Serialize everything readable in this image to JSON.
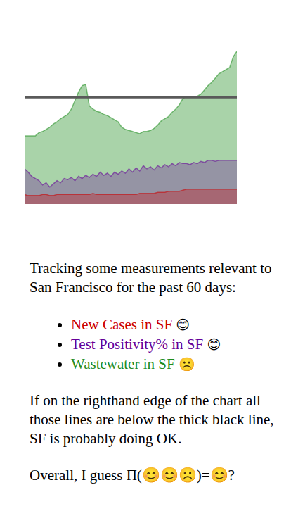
{
  "chart_data": {
    "type": "area",
    "x": [
      1,
      2,
      3,
      4,
      5,
      6,
      7,
      8,
      9,
      10,
      11,
      12,
      13,
      14,
      15,
      16,
      17,
      18,
      19,
      20,
      21,
      22,
      23,
      24,
      25,
      26,
      27,
      28,
      29,
      30,
      31,
      32,
      33,
      34,
      35,
      36,
      37,
      38,
      39,
      40,
      41,
      42,
      43,
      44,
      45,
      46,
      47,
      48,
      49,
      50,
      51,
      52,
      53,
      54,
      55,
      56,
      57,
      58,
      59,
      60
    ],
    "xlim": [
      1,
      60
    ],
    "ylim": [
      0,
      1.45
    ],
    "tick_labels": false,
    "grid": false,
    "reference_line": 1,
    "series": [
      {
        "name": "New Cases in SF",
        "mood": "😊",
        "color": "#cc0000",
        "values": [
          0.09,
          0.08,
          0.08,
          0.08,
          0.08,
          0.09,
          0.09,
          0.08,
          0.08,
          0.09,
          0.09,
          0.09,
          0.09,
          0.09,
          0.09,
          0.09,
          0.09,
          0.09,
          0.09,
          0.1,
          0.09,
          0.09,
          0.09,
          0.09,
          0.09,
          0.09,
          0.09,
          0.09,
          0.09,
          0.09,
          0.09,
          0.09,
          0.1,
          0.1,
          0.1,
          0.1,
          0.1,
          0.11,
          0.11,
          0.11,
          0.12,
          0.12,
          0.12,
          0.12,
          0.13,
          0.14,
          0.14,
          0.14,
          0.14,
          0.14,
          0.14,
          0.14,
          0.14,
          0.14,
          0.14,
          0.14,
          0.14,
          0.14,
          0.14,
          0.14
        ]
      },
      {
        "name": "Test Positivity% in SF",
        "mood": "😊",
        "color": "#660099",
        "values": [
          0.33,
          0.3,
          0.26,
          0.24,
          0.22,
          0.18,
          0.2,
          0.16,
          0.19,
          0.22,
          0.2,
          0.24,
          0.23,
          0.25,
          0.22,
          0.26,
          0.24,
          0.27,
          0.25,
          0.28,
          0.26,
          0.3,
          0.27,
          0.29,
          0.26,
          0.3,
          0.28,
          0.31,
          0.29,
          0.33,
          0.3,
          0.34,
          0.31,
          0.36,
          0.33,
          0.35,
          0.32,
          0.36,
          0.34,
          0.37,
          0.35,
          0.38,
          0.36,
          0.39,
          0.38,
          0.38,
          0.37,
          0.39,
          0.38,
          0.4,
          0.39,
          0.41,
          0.41,
          0.4,
          0.41,
          0.41,
          0.41,
          0.41,
          0.41,
          0.41
        ]
      },
      {
        "name": "Wastewater in SF",
        "mood": "☹️",
        "color": "#1e8c1e",
        "values": [
          0.64,
          0.64,
          0.64,
          0.64,
          0.67,
          0.68,
          0.7,
          0.72,
          0.75,
          0.77,
          0.8,
          0.82,
          0.84,
          0.89,
          0.97,
          1.05,
          1.11,
          1.12,
          0.92,
          0.89,
          0.87,
          0.86,
          0.84,
          0.83,
          0.81,
          0.79,
          0.77,
          0.72,
          0.7,
          0.69,
          0.68,
          0.67,
          0.66,
          0.68,
          0.68,
          0.69,
          0.71,
          0.74,
          0.78,
          0.8,
          0.82,
          0.86,
          0.89,
          0.93,
          0.99,
          1.01,
          1.0,
          1.0,
          1.01,
          1.03,
          1.07,
          1.11,
          1.14,
          1.18,
          1.22,
          1.24,
          1.26,
          1.28,
          1.38,
          1.43
        ]
      }
    ],
    "intro": "Tracking some measurements relevant to San Francisco for the past 60 days:",
    "note": "If on the righthand edge of the chart all those lines are below the thick black line, SF is probably doing OK.",
    "conclusion": "Overall, I guess Π(😊😊☹️)=😊?"
  }
}
